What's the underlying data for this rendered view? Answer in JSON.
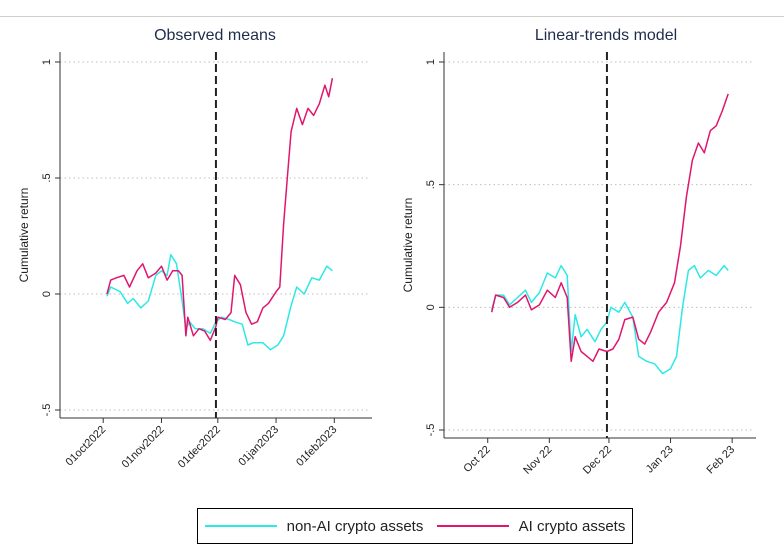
{
  "colors": {
    "non_ai": "#2ee8e8",
    "ai": "#e0166e",
    "dashed": "#222222",
    "grid": "#bfbfbf"
  },
  "legend": {
    "non_ai": "non-AI crypto assets",
    "ai": "AI crypto assets"
  },
  "chart_data": [
    {
      "type": "line",
      "title": "Observed means",
      "ylabel": "Cumulative return",
      "ylim": [
        -0.55,
        1.05
      ],
      "yticks": [
        {
          "v": 1,
          "label": "1"
        },
        {
          "v": 0.5,
          "label": ".5"
        },
        {
          "v": 0,
          "label": "0"
        },
        {
          "v": -0.5,
          "label": "-.5"
        }
      ],
      "xticks": [
        {
          "d": "2022-10-01",
          "label": "01oct2022"
        },
        {
          "d": "2022-11-01",
          "label": "01nov2022"
        },
        {
          "d": "2022-12-01",
          "label": "01dec2022"
        },
        {
          "d": "2023-01-01",
          "label": "01jan2023"
        },
        {
          "d": "2023-02-01",
          "label": "01feb2023"
        }
      ],
      "xlim": [
        "2022-09-08",
        "2023-02-20"
      ],
      "vline": "2022-11-30",
      "grid": true,
      "series": [
        {
          "name": "non-AI crypto assets",
          "key": "non_ai",
          "points": [
            [
              "2022-10-03",
              -0.01
            ],
            [
              "2022-10-05",
              0.03
            ],
            [
              "2022-10-10",
              0.01
            ],
            [
              "2022-10-14",
              -0.04
            ],
            [
              "2022-10-17",
              -0.02
            ],
            [
              "2022-10-21",
              -0.06
            ],
            [
              "2022-10-25",
              -0.03
            ],
            [
              "2022-10-29",
              0.08
            ],
            [
              "2022-11-01",
              0.1
            ],
            [
              "2022-11-04",
              0.08
            ],
            [
              "2022-11-06",
              0.17
            ],
            [
              "2022-11-09",
              0.13
            ],
            [
              "2022-11-12",
              -0.03
            ],
            [
              "2022-11-14",
              -0.15
            ],
            [
              "2022-11-16",
              -0.12
            ],
            [
              "2022-11-19",
              -0.15
            ],
            [
              "2022-11-23",
              -0.15
            ],
            [
              "2022-11-27",
              -0.17
            ],
            [
              "2022-11-30",
              -0.12
            ],
            [
              "2022-12-03",
              -0.1
            ],
            [
              "2022-12-07",
              -0.11
            ],
            [
              "2022-12-10",
              -0.12
            ],
            [
              "2022-12-14",
              -0.13
            ],
            [
              "2022-12-17",
              -0.22
            ],
            [
              "2022-12-20",
              -0.21
            ],
            [
              "2022-12-25",
              -0.21
            ],
            [
              "2022-12-29",
              -0.24
            ],
            [
              "2023-01-02",
              -0.22
            ],
            [
              "2023-01-05",
              -0.18
            ],
            [
              "2023-01-09",
              -0.05
            ],
            [
              "2023-01-12",
              0.03
            ],
            [
              "2023-01-16",
              0.0
            ],
            [
              "2023-01-20",
              0.07
            ],
            [
              "2023-01-24",
              0.06
            ],
            [
              "2023-01-28",
              0.12
            ],
            [
              "2023-01-31",
              0.1
            ]
          ]
        },
        {
          "name": "AI crypto assets",
          "key": "ai",
          "points": [
            [
              "2022-10-03",
              0.0
            ],
            [
              "2022-10-05",
              0.06
            ],
            [
              "2022-10-08",
              0.07
            ],
            [
              "2022-10-12",
              0.08
            ],
            [
              "2022-10-15",
              0.03
            ],
            [
              "2022-10-19",
              0.1
            ],
            [
              "2022-10-22",
              0.13
            ],
            [
              "2022-10-25",
              0.07
            ],
            [
              "2022-10-29",
              0.09
            ],
            [
              "2022-11-01",
              0.12
            ],
            [
              "2022-11-04",
              0.06
            ],
            [
              "2022-11-07",
              0.1
            ],
            [
              "2022-11-10",
              0.1
            ],
            [
              "2022-11-12",
              0.08
            ],
            [
              "2022-11-14",
              -0.18
            ],
            [
              "2022-11-15",
              -0.1
            ],
            [
              "2022-11-18",
              -0.18
            ],
            [
              "2022-11-21",
              -0.15
            ],
            [
              "2022-11-24",
              -0.16
            ],
            [
              "2022-11-27",
              -0.2
            ],
            [
              "2022-11-30",
              -0.14
            ],
            [
              "2022-12-01",
              -0.1
            ],
            [
              "2022-12-05",
              -0.11
            ],
            [
              "2022-12-08",
              -0.08
            ],
            [
              "2022-12-10",
              0.08
            ],
            [
              "2022-12-13",
              0.04
            ],
            [
              "2022-12-16",
              -0.08
            ],
            [
              "2022-12-19",
              -0.13
            ],
            [
              "2022-12-22",
              -0.12
            ],
            [
              "2022-12-25",
              -0.06
            ],
            [
              "2022-12-28",
              -0.04
            ],
            [
              "2023-01-01",
              0.01
            ],
            [
              "2023-01-03",
              0.03
            ],
            [
              "2023-01-05",
              0.3
            ],
            [
              "2023-01-07",
              0.5
            ],
            [
              "2023-01-09",
              0.7
            ],
            [
              "2023-01-12",
              0.8
            ],
            [
              "2023-01-15",
              0.73
            ],
            [
              "2023-01-18",
              0.8
            ],
            [
              "2023-01-21",
              0.77
            ],
            [
              "2023-01-24",
              0.82
            ],
            [
              "2023-01-27",
              0.9
            ],
            [
              "2023-01-29",
              0.85
            ],
            [
              "2023-01-31",
              0.93
            ]
          ]
        }
      ]
    },
    {
      "type": "line",
      "title": "Linear-trends model",
      "ylabel": "Cumulative return",
      "ylim": [
        -0.55,
        1.05
      ],
      "yticks": [
        {
          "v": 1,
          "label": "1"
        },
        {
          "v": 0.5,
          "label": ".5"
        },
        {
          "v": 0,
          "label": "0"
        },
        {
          "v": -0.5,
          "label": "-.5"
        }
      ],
      "xticks": [
        {
          "d": "2022-10-01",
          "label": "Oct 22"
        },
        {
          "d": "2022-11-01",
          "label": "Nov 22"
        },
        {
          "d": "2022-12-01",
          "label": "Dec 22"
        },
        {
          "d": "2023-01-01",
          "label": "Jan 23"
        },
        {
          "d": "2023-02-01",
          "label": "Feb 23"
        }
      ],
      "xlim": [
        "2022-09-09",
        "2023-02-12"
      ],
      "vline": "2022-11-30",
      "grid": true,
      "series": [
        {
          "name": "non-AI crypto assets",
          "key": "non_ai",
          "points": [
            [
              "2022-10-03",
              -0.01
            ],
            [
              "2022-10-05",
              0.05
            ],
            [
              "2022-10-09",
              0.05
            ],
            [
              "2022-10-12",
              0.01
            ],
            [
              "2022-10-16",
              0.04
            ],
            [
              "2022-10-20",
              0.07
            ],
            [
              "2022-10-23",
              0.02
            ],
            [
              "2022-10-27",
              0.06
            ],
            [
              "2022-10-31",
              0.14
            ],
            [
              "2022-11-04",
              0.12
            ],
            [
              "2022-11-07",
              0.17
            ],
            [
              "2022-11-10",
              0.13
            ],
            [
              "2022-11-12",
              -0.18
            ],
            [
              "2022-11-14",
              -0.03
            ],
            [
              "2022-11-17",
              -0.12
            ],
            [
              "2022-11-20",
              -0.09
            ],
            [
              "2022-11-24",
              -0.14
            ],
            [
              "2022-11-27",
              -0.09
            ],
            [
              "2022-11-30",
              -0.06
            ],
            [
              "2022-12-02",
              0.0
            ],
            [
              "2022-12-06",
              -0.02
            ],
            [
              "2022-12-09",
              0.02
            ],
            [
              "2022-12-13",
              -0.04
            ],
            [
              "2022-12-16",
              -0.2
            ],
            [
              "2022-12-20",
              -0.22
            ],
            [
              "2022-12-24",
              -0.23
            ],
            [
              "2022-12-28",
              -0.27
            ],
            [
              "2023-01-01",
              -0.25
            ],
            [
              "2023-01-04",
              -0.2
            ],
            [
              "2023-01-07",
              0.0
            ],
            [
              "2023-01-10",
              0.15
            ],
            [
              "2023-01-13",
              0.17
            ],
            [
              "2023-01-16",
              0.12
            ],
            [
              "2023-01-20",
              0.15
            ],
            [
              "2023-01-24",
              0.13
            ],
            [
              "2023-01-28",
              0.17
            ],
            [
              "2023-01-30",
              0.15
            ]
          ]
        },
        {
          "name": "AI crypto assets",
          "key": "ai",
          "points": [
            [
              "2022-10-03",
              -0.02
            ],
            [
              "2022-10-05",
              0.05
            ],
            [
              "2022-10-09",
              0.04
            ],
            [
              "2022-10-12",
              0.0
            ],
            [
              "2022-10-16",
              0.02
            ],
            [
              "2022-10-20",
              0.05
            ],
            [
              "2022-10-23",
              -0.01
            ],
            [
              "2022-10-27",
              0.01
            ],
            [
              "2022-10-31",
              0.07
            ],
            [
              "2022-11-04",
              0.04
            ],
            [
              "2022-11-07",
              0.1
            ],
            [
              "2022-11-10",
              0.04
            ],
            [
              "2022-11-12",
              -0.22
            ],
            [
              "2022-11-14",
              -0.12
            ],
            [
              "2022-11-17",
              -0.18
            ],
            [
              "2022-11-20",
              -0.2
            ],
            [
              "2022-11-23",
              -0.22
            ],
            [
              "2022-11-26",
              -0.17
            ],
            [
              "2022-11-30",
              -0.18
            ],
            [
              "2022-12-03",
              -0.17
            ],
            [
              "2022-12-06",
              -0.13
            ],
            [
              "2022-12-09",
              -0.05
            ],
            [
              "2022-12-13",
              -0.04
            ],
            [
              "2022-12-16",
              -0.13
            ],
            [
              "2022-12-19",
              -0.15
            ],
            [
              "2022-12-22",
              -0.1
            ],
            [
              "2022-12-26",
              -0.02
            ],
            [
              "2022-12-30",
              0.02
            ],
            [
              "2023-01-03",
              0.1
            ],
            [
              "2023-01-06",
              0.25
            ],
            [
              "2023-01-09",
              0.45
            ],
            [
              "2023-01-12",
              0.6
            ],
            [
              "2023-01-15",
              0.67
            ],
            [
              "2023-01-18",
              0.63
            ],
            [
              "2023-01-21",
              0.72
            ],
            [
              "2023-01-24",
              0.74
            ],
            [
              "2023-01-27",
              0.8
            ],
            [
              "2023-01-30",
              0.87
            ]
          ]
        }
      ]
    }
  ]
}
